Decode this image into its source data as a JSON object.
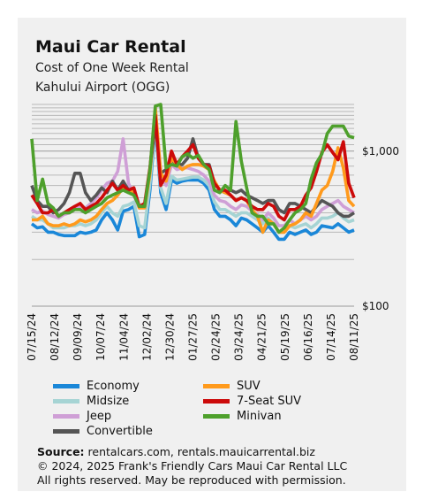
{
  "title": "Maui Car Rental",
  "subtitle": "Cost of One Week Rental",
  "subtitle2": "Kahului Airport (OGG)",
  "source": {
    "label": "Source:",
    "text": " rentalcars.com, rentals.mauicarrental.biz",
    "line2": "© 2024, 2025  Frank's Friendly Cars Maui Car Rental LLC",
    "line3": "All rights reserved. May be reproduced with permission."
  },
  "colors": {
    "Economy": "#1a87d8",
    "Midsize": "#a6d4d4",
    "Jeep": "#cf9fd6",
    "Convertible": "#555555",
    "SUV": "#ff9a1c",
    "7-Seat SUV": "#cc0a0a",
    "Minivan": "#4ea02c"
  },
  "chart_data": {
    "type": "line",
    "yscale": "log",
    "ylim": [
      100,
      2000
    ],
    "ytick_labels": [
      "$1,000",
      "$100"
    ],
    "ytick_values": [
      1000,
      100
    ],
    "grid": true,
    "legend_position": "bottom",
    "x_tick_labels": [
      "07/15/24",
      "08/12/24",
      "09/09/24",
      "10/07/24",
      "11/04/24",
      "12/02/24",
      "12/30/24",
      "01/27/25",
      "02/24/25",
      "03/24/25",
      "04/21/25",
      "05/19/25",
      "06/16/25",
      "07/14/25",
      "08/11/25"
    ],
    "series": [
      {
        "name": "Economy",
        "values": [
          340,
          320,
          325,
          300,
          300,
          290,
          285,
          285,
          285,
          300,
          295,
          300,
          310,
          360,
          400,
          360,
          310,
          410,
          420,
          440,
          280,
          290,
          560,
          1500,
          540,
          420,
          650,
          620,
          640,
          650,
          650,
          650,
          620,
          560,
          420,
          380,
          380,
          360,
          330,
          370,
          360,
          340,
          320,
          300,
          330,
          300,
          270,
          270,
          300,
          290,
          300,
          310,
          290,
          300,
          330,
          325,
          320,
          340,
          320,
          300,
          310
        ]
      },
      {
        "name": "Midsize",
        "values": [
          380,
          360,
          360,
          340,
          320,
          320,
          320,
          330,
          330,
          340,
          330,
          340,
          360,
          400,
          440,
          400,
          380,
          440,
          450,
          470,
          330,
          320,
          620,
          1550,
          580,
          460,
          690,
          650,
          660,
          670,
          680,
          680,
          650,
          600,
          470,
          420,
          420,
          400,
          380,
          400,
          400,
          380,
          360,
          340,
          370,
          340,
          300,
          300,
          330,
          320,
          330,
          340,
          320,
          340,
          370,
          370,
          380,
          400,
          370,
          350,
          360
        ]
      },
      {
        "name": "Jeep",
        "values": [
          420,
          400,
          410,
          390,
          380,
          370,
          390,
          400,
          420,
          440,
          430,
          460,
          500,
          560,
          620,
          640,
          740,
          1200,
          620,
          520,
          430,
          440,
          760,
          1800,
          700,
          600,
          820,
          760,
          780,
          780,
          760,
          740,
          700,
          640,
          520,
          480,
          470,
          440,
          420,
          450,
          440,
          410,
          390,
          360,
          400,
          370,
          330,
          330,
          360,
          340,
          360,
          380,
          360,
          380,
          420,
          440,
          460,
          480,
          440,
          420,
          400
        ]
      },
      {
        "name": "Convertible",
        "values": [
          600,
          480,
          440,
          440,
          400,
          420,
          460,
          540,
          720,
          720,
          540,
          480,
          520,
          580,
          540,
          640,
          560,
          640,
          560,
          540,
          440,
          440,
          760,
          1500,
          720,
          760,
          880,
          820,
          820,
          900,
          1200,
          900,
          820,
          820,
          620,
          560,
          540,
          560,
          540,
          560,
          520,
          500,
          480,
          460,
          480,
          480,
          420,
          400,
          460,
          460,
          440,
          420,
          400,
          440,
          480,
          460,
          440,
          400,
          380,
          380,
          400
        ]
      },
      {
        "name": "SUV",
        "values": [
          360,
          360,
          380,
          340,
          330,
          330,
          340,
          330,
          340,
          360,
          350,
          360,
          380,
          420,
          460,
          480,
          520,
          580,
          540,
          560,
          430,
          430,
          720,
          1900,
          720,
          640,
          900,
          820,
          760,
          800,
          820,
          820,
          800,
          760,
          640,
          560,
          540,
          520,
          480,
          500,
          480,
          420,
          380,
          300,
          360,
          340,
          300,
          300,
          330,
          340,
          360,
          400,
          380,
          460,
          560,
          600,
          740,
          1050,
          780,
          480,
          440
        ]
      },
      {
        "name": "7-Seat SUV",
        "values": [
          520,
          460,
          400,
          400,
          420,
          380,
          400,
          420,
          440,
          460,
          420,
          440,
          460,
          500,
          560,
          620,
          560,
          600,
          560,
          580,
          440,
          460,
          780,
          1700,
          600,
          700,
          1000,
          820,
          920,
          1000,
          1100,
          900,
          820,
          800,
          620,
          560,
          560,
          520,
          480,
          500,
          480,
          440,
          420,
          420,
          460,
          440,
          380,
          360,
          420,
          420,
          440,
          520,
          580,
          740,
          980,
          1100,
          980,
          880,
          1150,
          620,
          500
        ]
      },
      {
        "name": "Minivan",
        "values": [
          1200,
          480,
          660,
          460,
          430,
          380,
          400,
          400,
          420,
          420,
          400,
          420,
          440,
          460,
          500,
          520,
          540,
          560,
          540,
          520,
          440,
          440,
          760,
          1950,
          2000,
          780,
          820,
          800,
          920,
          960,
          900,
          940,
          820,
          760,
          560,
          540,
          600,
          560,
          1550,
          860,
          580,
          400,
          380,
          380,
          340,
          340,
          300,
          320,
          360,
          400,
          420,
          460,
          660,
          840,
          960,
          1300,
          1450,
          1450,
          1450,
          1250,
          1220
        ]
      }
    ]
  }
}
